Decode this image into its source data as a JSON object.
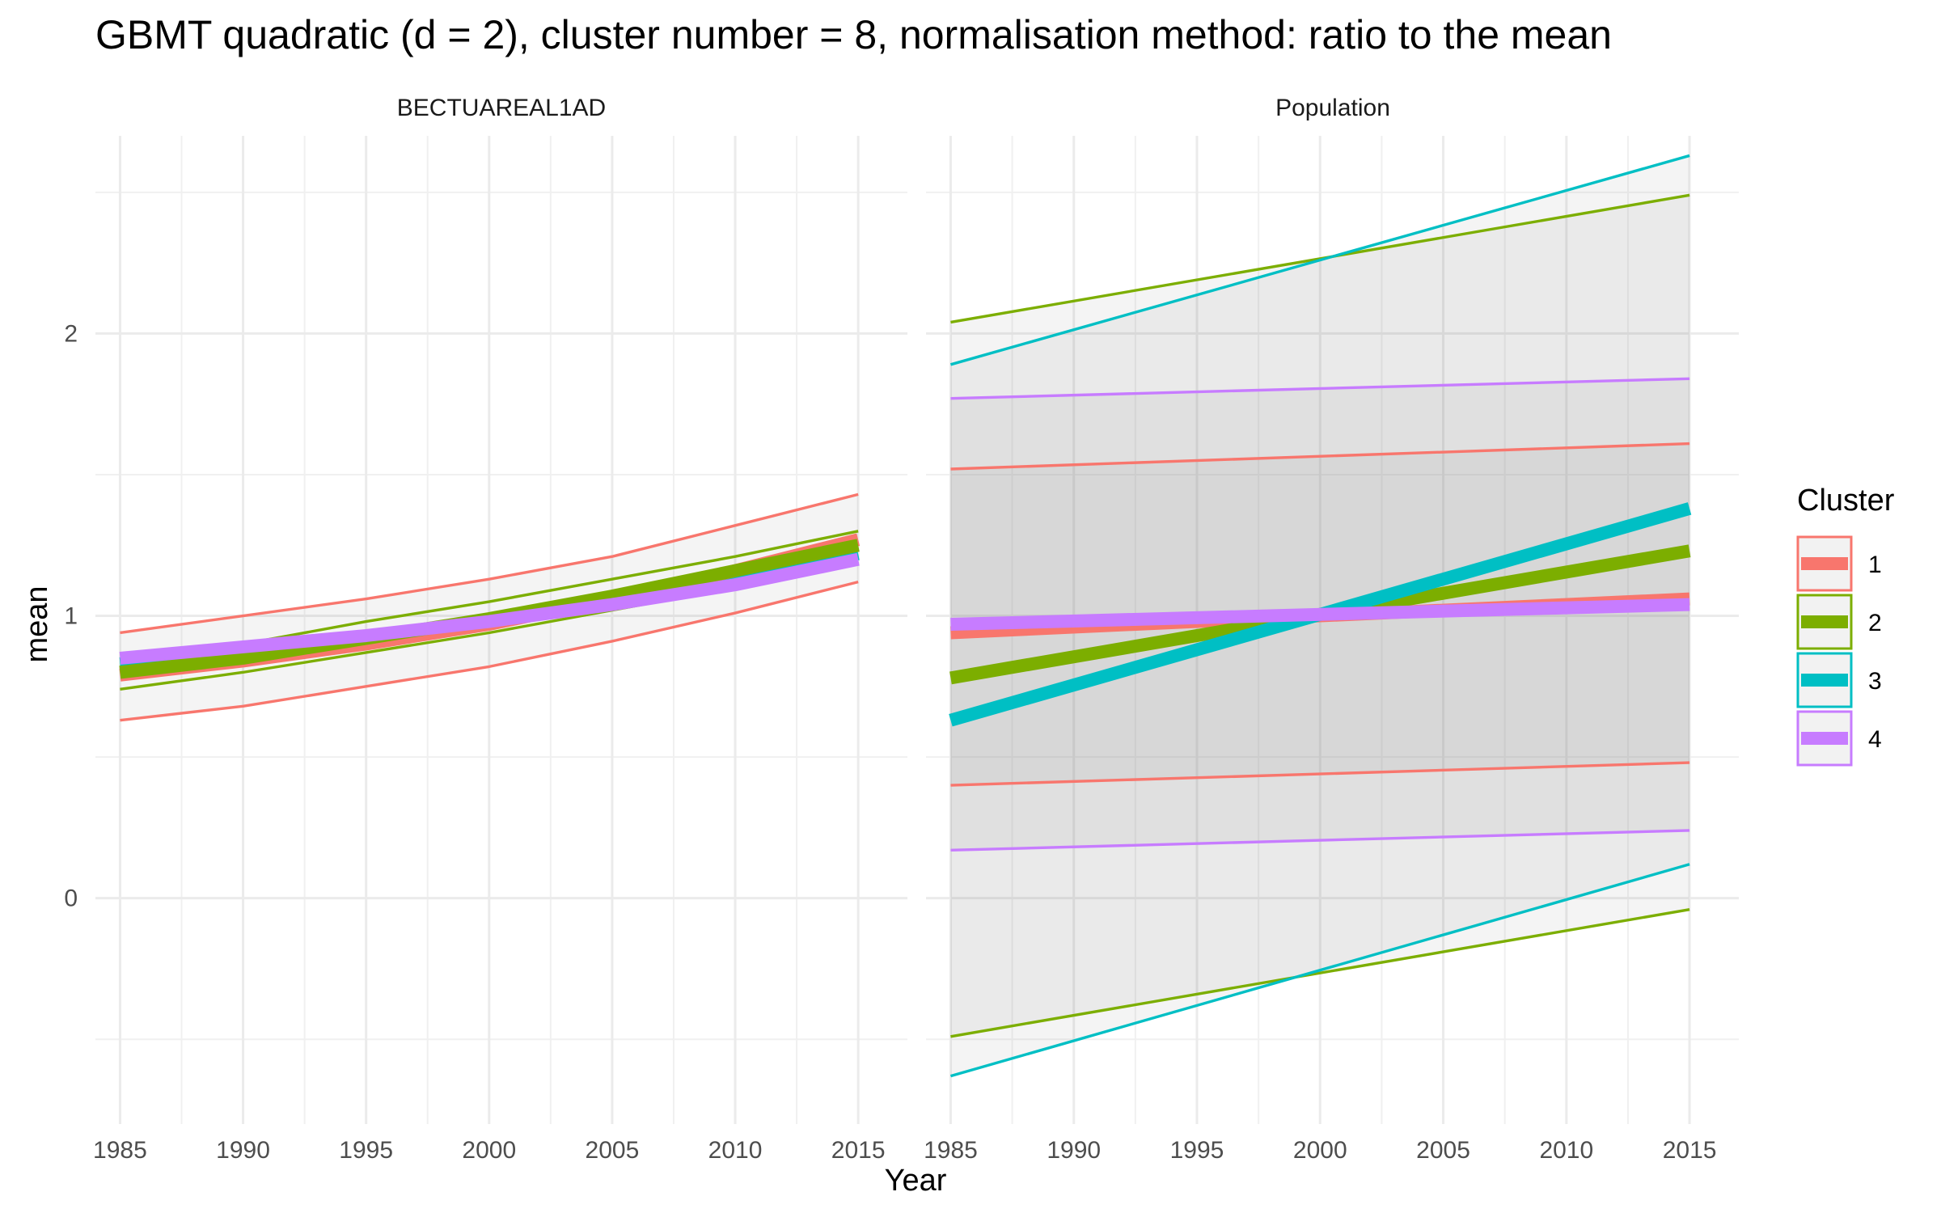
{
  "chart_data": {
    "type": "line",
    "title": "GBMT quadratic (d = 2), cluster number = 8, normalisation method: ratio to the mean",
    "xlabel": "Year",
    "ylabel": "mean",
    "x_ticks": [
      1985,
      1990,
      1995,
      2000,
      2005,
      2010,
      2015
    ],
    "y_ticks": [
      0,
      1,
      2
    ],
    "xlim": [
      1984,
      2017
    ],
    "ylim": [
      -0.8,
      2.7
    ],
    "grid": true,
    "legend": {
      "title": "Cluster",
      "position": "right",
      "entries": [
        {
          "label": "1",
          "color": "#F8766D"
        },
        {
          "label": "2",
          "color": "#7CAE00"
        },
        {
          "label": "3",
          "color": "#00BFC4"
        },
        {
          "label": "4",
          "color": "#C77CFF"
        }
      ]
    },
    "panels": [
      {
        "strip": "BECTUAREAL1AD",
        "series": [
          {
            "cluster": "1",
            "kind": "upper",
            "x": [
              1985,
              1990,
              1995,
              2000,
              2005,
              2010,
              2015
            ],
            "y": [
              0.94,
              1.0,
              1.06,
              1.13,
              1.21,
              1.32,
              1.43
            ]
          },
          {
            "cluster": "1",
            "kind": "lower",
            "x": [
              1985,
              1990,
              1995,
              2000,
              2005,
              2010,
              2015
            ],
            "y": [
              0.63,
              0.68,
              0.75,
              0.82,
              0.91,
              1.01,
              1.12
            ]
          },
          {
            "cluster": "2",
            "kind": "upper",
            "x": [
              1985,
              1990,
              1995,
              2000,
              2005,
              2010,
              2015
            ],
            "y": [
              0.82,
              0.9,
              0.98,
              1.05,
              1.13,
              1.21,
              1.3
            ]
          },
          {
            "cluster": "2",
            "kind": "lower",
            "x": [
              1985,
              1990,
              1995,
              2000,
              2005,
              2010,
              2015
            ],
            "y": [
              0.74,
              0.8,
              0.87,
              0.94,
              1.02,
              1.1,
              1.19
            ]
          },
          {
            "cluster": "3",
            "kind": "mean",
            "x": [
              1985,
              1990,
              1995,
              2000,
              2005,
              2010,
              2015
            ],
            "y": [
              0.83,
              0.87,
              0.92,
              0.98,
              1.05,
              1.13,
              1.22
            ]
          },
          {
            "cluster": "1",
            "kind": "mean",
            "x": [
              1985,
              1990,
              1995,
              2000,
              2005,
              2010,
              2015
            ],
            "y": [
              0.79,
              0.84,
              0.9,
              0.97,
              1.06,
              1.16,
              1.27
            ]
          },
          {
            "cluster": "2",
            "kind": "mean",
            "x": [
              1985,
              1990,
              1995,
              2000,
              2005,
              2010,
              2015
            ],
            "y": [
              0.8,
              0.85,
              0.92,
              0.99,
              1.07,
              1.16,
              1.25
            ]
          },
          {
            "cluster": "4",
            "kind": "mean",
            "x": [
              1985,
              1990,
              1995,
              2000,
              2005,
              2010,
              2015
            ],
            "y": [
              0.85,
              0.89,
              0.93,
              0.98,
              1.04,
              1.11,
              1.2
            ]
          }
        ],
        "bands": [
          {
            "cluster": "1",
            "x": [
              1985,
              1990,
              1995,
              2000,
              2005,
              2010,
              2015
            ],
            "upper": [
              0.94,
              1.0,
              1.06,
              1.13,
              1.21,
              1.32,
              1.43
            ],
            "lower": [
              0.63,
              0.68,
              0.75,
              0.82,
              0.91,
              1.01,
              1.12
            ]
          }
        ]
      },
      {
        "strip": "Population",
        "series": [
          {
            "cluster": "1",
            "kind": "upper",
            "x": [
              1985,
              2015
            ],
            "y": [
              1.52,
              1.61
            ]
          },
          {
            "cluster": "1",
            "kind": "lower",
            "x": [
              1985,
              2015
            ],
            "y": [
              0.4,
              0.48
            ]
          },
          {
            "cluster": "2",
            "kind": "upper",
            "x": [
              1985,
              2015
            ],
            "y": [
              2.04,
              2.49
            ]
          },
          {
            "cluster": "2",
            "kind": "lower",
            "x": [
              1985,
              2015
            ],
            "y": [
              -0.49,
              -0.04
            ]
          },
          {
            "cluster": "3",
            "kind": "upper",
            "x": [
              1985,
              2015
            ],
            "y": [
              1.89,
              2.63
            ]
          },
          {
            "cluster": "3",
            "kind": "lower",
            "x": [
              1985,
              2015
            ],
            "y": [
              -0.63,
              0.12
            ]
          },
          {
            "cluster": "4",
            "kind": "upper",
            "x": [
              1985,
              2015
            ],
            "y": [
              1.77,
              1.84
            ]
          },
          {
            "cluster": "4",
            "kind": "lower",
            "x": [
              1985,
              2015
            ],
            "y": [
              0.17,
              0.24
            ]
          },
          {
            "cluster": "1",
            "kind": "mean",
            "x": [
              1985,
              2015
            ],
            "y": [
              0.94,
              1.06
            ]
          },
          {
            "cluster": "2",
            "kind": "mean",
            "x": [
              1985,
              2015
            ],
            "y": [
              0.78,
              1.23
            ]
          },
          {
            "cluster": "3",
            "kind": "mean",
            "x": [
              1985,
              2015
            ],
            "y": [
              0.63,
              1.38
            ]
          },
          {
            "cluster": "4",
            "kind": "mean",
            "x": [
              1985,
              2015
            ],
            "y": [
              0.97,
              1.04
            ]
          }
        ],
        "bands": [
          {
            "cluster": "3",
            "x": [
              1985,
              2015
            ],
            "upper": [
              1.89,
              2.63
            ],
            "lower": [
              -0.63,
              0.12
            ]
          },
          {
            "cluster": "2",
            "x": [
              1985,
              2015
            ],
            "upper": [
              2.04,
              2.49
            ],
            "lower": [
              -0.49,
              -0.04
            ]
          },
          {
            "cluster": "4",
            "x": [
              1985,
              2015
            ],
            "upper": [
              1.77,
              1.84
            ],
            "lower": [
              0.17,
              0.24
            ]
          },
          {
            "cluster": "1",
            "x": [
              1985,
              2015
            ],
            "upper": [
              1.52,
              1.61
            ],
            "lower": [
              0.4,
              0.48
            ]
          }
        ]
      }
    ]
  }
}
